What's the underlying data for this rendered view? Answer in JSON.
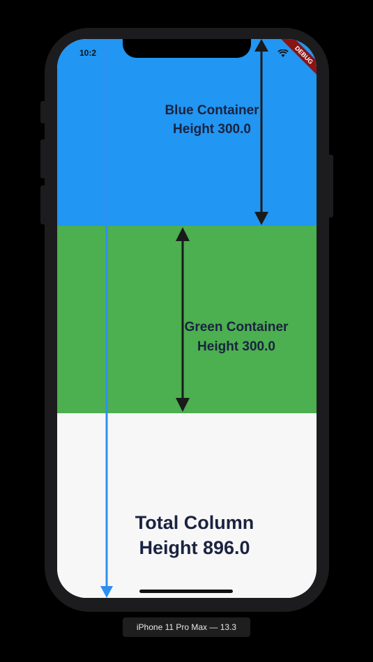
{
  "status_bar": {
    "time": "10:2"
  },
  "debug_banner": "DEBUG",
  "blue_container": {
    "label": "Blue Container\nHeight 300.0",
    "color": "#2196f3"
  },
  "green_container": {
    "label": "Green Container\nHeight 300.0",
    "color": "#4caf50"
  },
  "column_total": {
    "label": "Total Column\nHeight 896.0"
  },
  "colors": {
    "arrow_dark": "#1a1a1a",
    "arrow_blue": "#2f8ff0",
    "text": "#1a2340"
  },
  "device_caption": "iPhone 11 Pro Max — 13.3"
}
